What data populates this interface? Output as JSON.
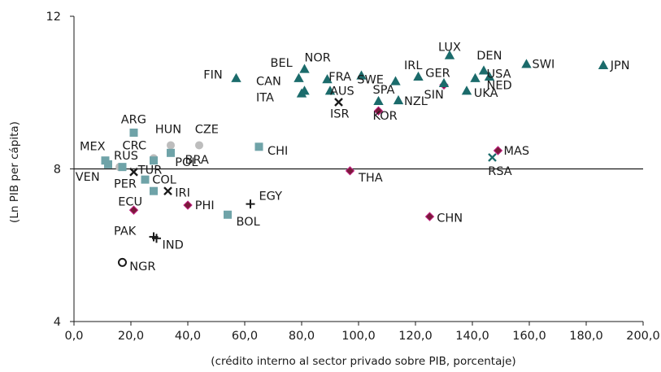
{
  "chart_data": {
    "type": "scatter",
    "title": "",
    "xlabel": "(crédito interno al sector privado sobre PIB, porcentaje)",
    "ylabel": "(Ln PIB per cápita)",
    "xlim": [
      0,
      200
    ],
    "ylim": [
      4,
      12
    ],
    "x_ticks": [
      "0,0",
      "20,0",
      "40,0",
      "60,0",
      "80,0",
      "100,0",
      "120,0",
      "140,0",
      "160,0",
      "180,0",
      "200,0"
    ],
    "y_ticks": [
      "4",
      "8",
      "12"
    ],
    "reference_line_y": 8,
    "grid": false,
    "legend": "none",
    "colors": {
      "triangle": "#1b6b6b",
      "square": "#6fa3a8",
      "circle": "#bdbdbd",
      "diamond_fill": "#7a1a3a",
      "diamond_edge": "#c02080",
      "cross": "#1a1a1a",
      "x_teal": "#1b6b6b"
    },
    "points": [
      {
        "label": "JPN",
        "x": 186,
        "y": 10.72,
        "marker": "triangle"
      },
      {
        "label": "SWI",
        "x": 159,
        "y": 10.75,
        "marker": "triangle"
      },
      {
        "label": "LUX",
        "x": 132,
        "y": 10.98,
        "marker": "triangle"
      },
      {
        "label": "DEN",
        "x": 144,
        "y": 10.58,
        "marker": "triangle"
      },
      {
        "label": "USA",
        "x": 146,
        "y": 10.42,
        "marker": "triangle"
      },
      {
        "label": "NED",
        "x": 141,
        "y": 10.38,
        "marker": "triangle"
      },
      {
        "label": "UKA",
        "x": 138,
        "y": 10.05,
        "marker": "triangle"
      },
      {
        "label": "GER",
        "x": 130,
        "y": 10.2,
        "marker": "diamond"
      },
      {
        "label": "SIN",
        "x": 130,
        "y": 10.25,
        "marker": "triangle"
      },
      {
        "label": "IRL",
        "x": 121,
        "y": 10.42,
        "marker": "triangle"
      },
      {
        "label": "NZL",
        "x": 114,
        "y": 9.8,
        "marker": "triangle"
      },
      {
        "label": "SPA",
        "x": 113,
        "y": 10.3,
        "marker": "triangle"
      },
      {
        "label": "SWE",
        "x": 101,
        "y": 10.45,
        "marker": "triangle"
      },
      {
        "label": "AUS",
        "x": 107,
        "y": 9.78,
        "marker": "triangle"
      },
      {
        "label": "KOR",
        "x": 107,
        "y": 9.52,
        "marker": "diamond"
      },
      {
        "label": "FRA",
        "x": 89,
        "y": 10.35,
        "marker": "triangle"
      },
      {
        "label": "ISR",
        "x": 93,
        "y": 9.75,
        "marker": "x"
      },
      {
        "label": "NOR",
        "x": 81,
        "y": 10.62,
        "marker": "triangle"
      },
      {
        "label": "BEL",
        "x": 79,
        "y": 10.38,
        "marker": "triangle"
      },
      {
        "label": "CAN",
        "x": 90,
        "y": 10.05,
        "marker": "triangle"
      },
      {
        "label": "ITA",
        "x": 80,
        "y": 9.98,
        "marker": "triangle"
      },
      {
        "label": "",
        "x": 81,
        "y": 10.05,
        "marker": "triangle"
      },
      {
        "label": "FIN",
        "x": 57,
        "y": 10.38,
        "marker": "triangle"
      },
      {
        "label": "MAS",
        "x": 149,
        "y": 8.48,
        "marker": "diamond"
      },
      {
        "label": "RSA",
        "x": 147,
        "y": 8.3,
        "marker": "x"
      },
      {
        "label": "THA",
        "x": 97,
        "y": 7.95,
        "marker": "diamond"
      },
      {
        "label": "CHN",
        "x": 125,
        "y": 6.75,
        "marker": "diamond"
      },
      {
        "label": "CHI",
        "x": 65,
        "y": 8.58,
        "marker": "square"
      },
      {
        "label": "EGY",
        "x": 62,
        "y": 7.08,
        "marker": "cross"
      },
      {
        "label": "BOL",
        "x": 54,
        "y": 6.8,
        "marker": "square"
      },
      {
        "label": "PHI",
        "x": 40,
        "y": 7.05,
        "marker": "diamond"
      },
      {
        "label": "CZE",
        "x": 44,
        "y": 8.62,
        "marker": "circle"
      },
      {
        "label": "HUN",
        "x": 34,
        "y": 8.62,
        "marker": "circle"
      },
      {
        "label": "POL",
        "x": 34,
        "y": 8.42,
        "marker": "square"
      },
      {
        "label": "BRA",
        "x": 28,
        "y": 8.28,
        "marker": "circle"
      },
      {
        "label": "CRC",
        "x": 28,
        "y": 8.22,
        "marker": "square"
      },
      {
        "label": "ARG",
        "x": 21,
        "y": 8.95,
        "marker": "square"
      },
      {
        "label": "TUR",
        "x": 21,
        "y": 7.92,
        "marker": "x"
      },
      {
        "label": "IRI",
        "x": 33,
        "y": 7.42,
        "marker": "x"
      },
      {
        "label": "COL",
        "x": 25,
        "y": 7.72,
        "marker": "square"
      },
      {
        "label": "",
        "x": 28,
        "y": 7.42,
        "marker": "square"
      },
      {
        "label": "ECU",
        "x": 21,
        "y": 6.92,
        "marker": "diamond"
      },
      {
        "label": "MEX",
        "x": 11,
        "y": 8.22,
        "marker": "square"
      },
      {
        "label": "RUS",
        "x": 16,
        "y": 8.05,
        "marker": "circle"
      },
      {
        "label": "VEN",
        "x": 12,
        "y": 8.12,
        "marker": "square"
      },
      {
        "label": "PER",
        "x": 17,
        "y": 8.05,
        "marker": "square"
      },
      {
        "label": "PAK",
        "x": 28,
        "y": 6.22,
        "marker": "cross"
      },
      {
        "label": "IND",
        "x": 29,
        "y": 6.18,
        "marker": "cross"
      },
      {
        "label": "NGR",
        "x": 17,
        "y": 5.55,
        "marker": "ring"
      }
    ],
    "point_labels": [
      {
        "text": "JPN",
        "x": 188.5,
        "y": 10.72,
        "anchor": "start"
      },
      {
        "text": "SWI",
        "x": 161,
        "y": 10.75,
        "anchor": "start"
      },
      {
        "text": "LUX",
        "x": 128,
        "y": 11.2,
        "anchor": "start"
      },
      {
        "text": "DEN",
        "x": 141.5,
        "y": 10.98,
        "anchor": "start"
      },
      {
        "text": "USA",
        "x": 145,
        "y": 10.5,
        "anchor": "start"
      },
      {
        "text": "NED",
        "x": 145,
        "y": 10.2,
        "anchor": "start"
      },
      {
        "text": "UKA",
        "x": 140.5,
        "y": 10.0,
        "anchor": "start"
      },
      {
        "text": "GER",
        "x": 123.5,
        "y": 10.52,
        "anchor": "start"
      },
      {
        "text": "SIN",
        "x": 123,
        "y": 9.95,
        "anchor": "start"
      },
      {
        "text": "IRL",
        "x": 116,
        "y": 10.72,
        "anchor": "start"
      },
      {
        "text": "NZL",
        "x": 116,
        "y": 9.78,
        "anchor": "start"
      },
      {
        "text": "SPA",
        "x": 105,
        "y": 10.08,
        "anchor": "start"
      },
      {
        "text": "SWE",
        "x": 99.5,
        "y": 10.35,
        "anchor": "start"
      },
      {
        "text": "AUS",
        "x": 90,
        "y": 10.05,
        "anchor": "start"
      },
      {
        "text": "KOR",
        "x": 105,
        "y": 9.4,
        "anchor": "start"
      },
      {
        "text": "FRA",
        "x": 89.5,
        "y": 10.42,
        "anchor": "start"
      },
      {
        "text": "ISR",
        "x": 90,
        "y": 9.45,
        "anchor": "start"
      },
      {
        "text": "NOR",
        "x": 81,
        "y": 10.92,
        "anchor": "start"
      },
      {
        "text": "BEL",
        "x": 69,
        "y": 10.78,
        "anchor": "start"
      },
      {
        "text": "CAN",
        "x": 64,
        "y": 10.3,
        "anchor": "start"
      },
      {
        "text": "ITA",
        "x": 64,
        "y": 9.88,
        "anchor": "start"
      },
      {
        "text": "FIN",
        "x": 45.5,
        "y": 10.48,
        "anchor": "start"
      },
      {
        "text": "MAS",
        "x": 151,
        "y": 8.48,
        "anchor": "start"
      },
      {
        "text": "RSA",
        "x": 145.5,
        "y": 7.95,
        "anchor": "start"
      },
      {
        "text": "THA",
        "x": 100,
        "y": 7.78,
        "anchor": "start"
      },
      {
        "text": "CHN",
        "x": 127.5,
        "y": 6.72,
        "anchor": "start"
      },
      {
        "text": "CHI",
        "x": 68,
        "y": 8.48,
        "anchor": "start"
      },
      {
        "text": "EGY",
        "x": 65,
        "y": 7.3,
        "anchor": "start"
      },
      {
        "text": "BOL",
        "x": 57,
        "y": 6.62,
        "anchor": "start"
      },
      {
        "text": "PHI",
        "x": 42.5,
        "y": 7.05,
        "anchor": "start"
      },
      {
        "text": "CZE",
        "x": 42.5,
        "y": 9.05,
        "anchor": "start"
      },
      {
        "text": "HUN",
        "x": 28.5,
        "y": 9.05,
        "anchor": "start"
      },
      {
        "text": "CRC",
        "x": 17,
        "y": 8.62,
        "anchor": "start"
      },
      {
        "text": "POL",
        "x": 35.5,
        "y": 8.18,
        "anchor": "start"
      },
      {
        "text": "BRA",
        "x": 39,
        "y": 8.25,
        "anchor": "start"
      },
      {
        "text": "ARG",
        "x": 16.5,
        "y": 9.3,
        "anchor": "start"
      },
      {
        "text": "RUS",
        "x": 14,
        "y": 8.35,
        "anchor": "start"
      },
      {
        "text": "MEX",
        "x": 2,
        "y": 8.6,
        "anchor": "start"
      },
      {
        "text": "VEN",
        "x": 0.5,
        "y": 7.8,
        "anchor": "start"
      },
      {
        "text": "TUR",
        "x": 22.5,
        "y": 7.98,
        "anchor": "start"
      },
      {
        "text": "PER",
        "x": 14,
        "y": 7.62,
        "anchor": "start"
      },
      {
        "text": "COL",
        "x": 27.5,
        "y": 7.72,
        "anchor": "start"
      },
      {
        "text": "IRI",
        "x": 35.5,
        "y": 7.38,
        "anchor": "start"
      },
      {
        "text": "ECU",
        "x": 15.5,
        "y": 7.15,
        "anchor": "start"
      },
      {
        "text": "PAK",
        "x": 14,
        "y": 6.38,
        "anchor": "start"
      },
      {
        "text": "IND",
        "x": 31,
        "y": 6.02,
        "anchor": "start"
      },
      {
        "text": "NGR",
        "x": 19.5,
        "y": 5.45,
        "anchor": "start"
      }
    ]
  }
}
